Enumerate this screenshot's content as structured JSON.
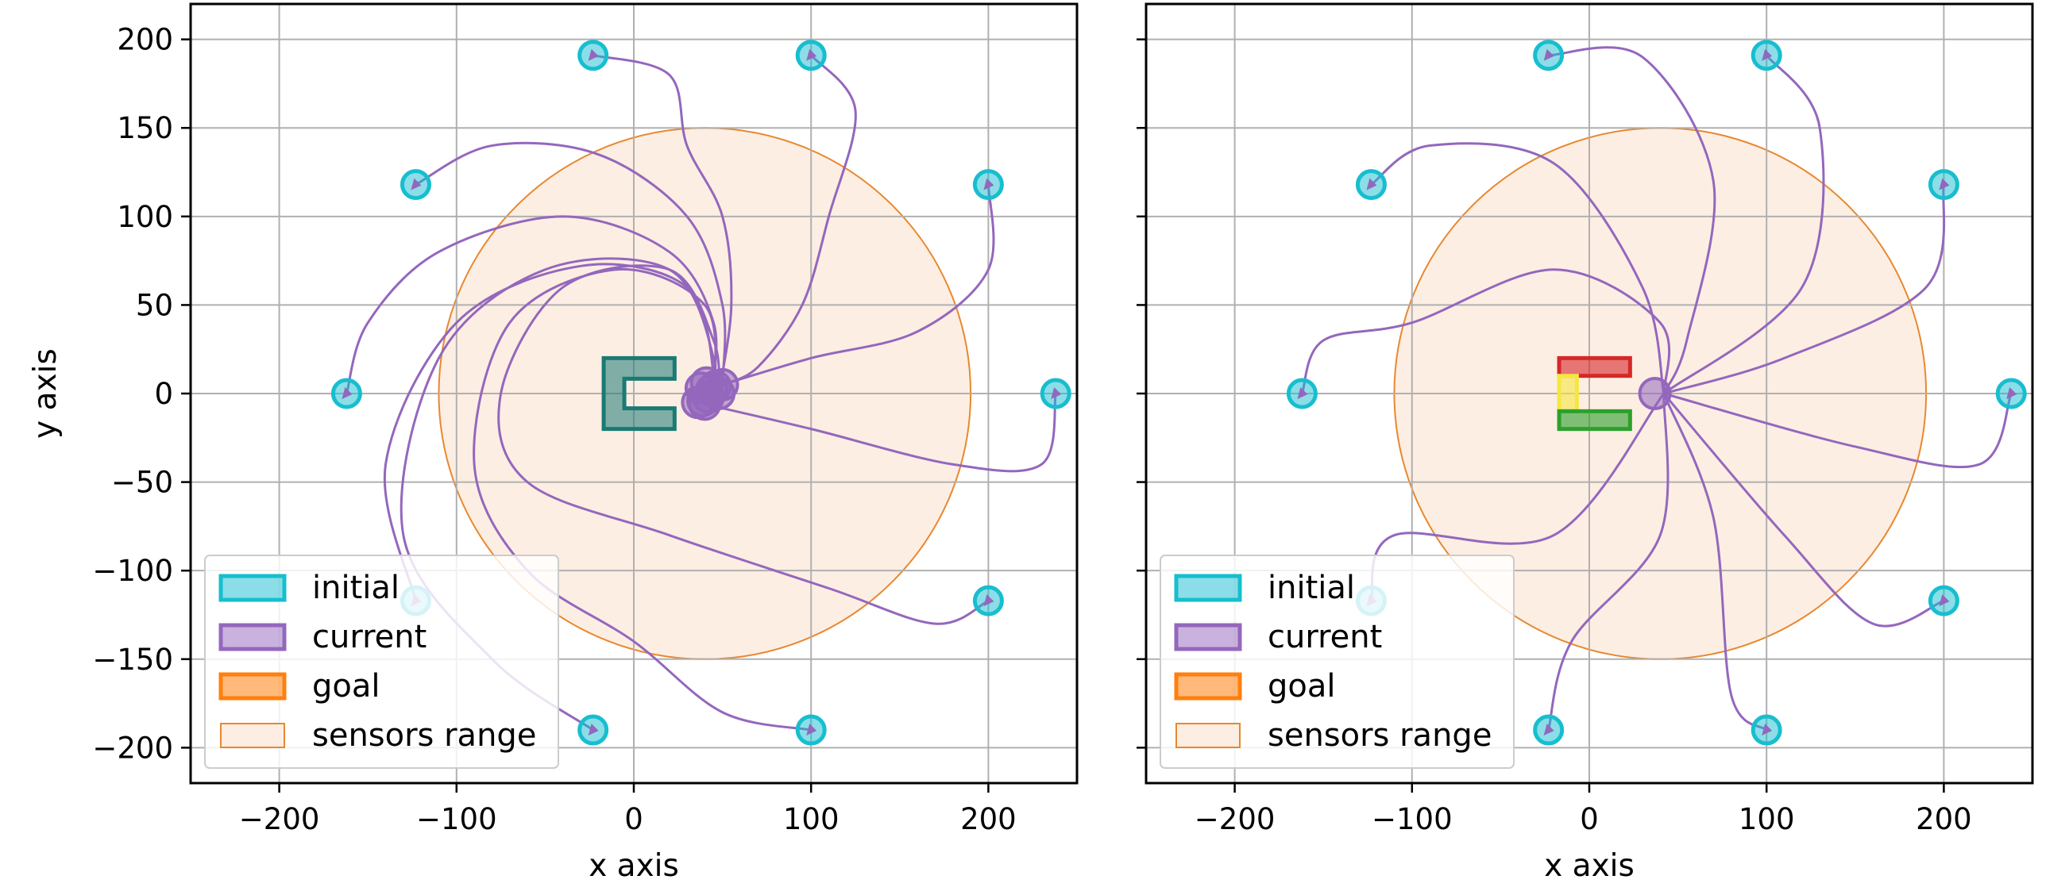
{
  "chart_data": [
    {
      "type": "scatter",
      "panel": "left",
      "xlabel": "x axis",
      "ylabel": "y axis",
      "xlim": [
        -250,
        250
      ],
      "ylim": [
        -220,
        220
      ],
      "xticks": [
        -200,
        -100,
        0,
        100,
        200
      ],
      "yticks": [
        -200,
        -150,
        -100,
        -50,
        0,
        50,
        100,
        150,
        200
      ],
      "xtick_labels": [
        "−200",
        "−100",
        "0",
        "100",
        "200"
      ],
      "ytick_labels": [
        "−200",
        "−150",
        "−100",
        "−50",
        "0",
        "50",
        "100",
        "150",
        "200"
      ],
      "grid": true,
      "legend_position": "lower-left",
      "legend": [
        "initial",
        "current",
        "goal",
        "sensors range"
      ],
      "sensors_range": {
        "center": [
          40,
          0
        ],
        "radius": 150
      },
      "goal_shape": {
        "type": "c-bracket",
        "x_range": [
          -17,
          23
        ],
        "y_range": [
          -20,
          20
        ],
        "color": "#1a7a74"
      },
      "initial_positions": [
        [
          -162,
          0
        ],
        [
          -123,
          118
        ],
        [
          -23,
          191
        ],
        [
          100,
          191
        ],
        [
          200,
          118
        ],
        [
          238,
          0
        ],
        [
          200,
          -117
        ],
        [
          100,
          -190
        ],
        [
          -23,
          -190
        ],
        [
          -123,
          -117
        ]
      ],
      "current_positions": [
        [
          40,
          -6
        ],
        [
          44,
          2
        ],
        [
          50,
          5
        ],
        [
          38,
          3
        ],
        [
          42,
          -2
        ],
        [
          48,
          0
        ],
        [
          36,
          -5
        ],
        [
          46,
          4
        ],
        [
          41,
          6
        ],
        [
          39,
          -4
        ]
      ],
      "trajectories": [
        [
          [
            -162,
            0
          ],
          [
            -150,
            40
          ],
          [
            -110,
            80
          ],
          [
            -40,
            100
          ],
          [
            20,
            80
          ],
          [
            45,
            40
          ],
          [
            44,
            2
          ]
        ],
        [
          [
            -123,
            118
          ],
          [
            -80,
            140
          ],
          [
            -20,
            135
          ],
          [
            30,
            100
          ],
          [
            50,
            50
          ],
          [
            50,
            5
          ]
        ],
        [
          [
            -23,
            191
          ],
          [
            20,
            180
          ],
          [
            30,
            140
          ],
          [
            50,
            100
          ],
          [
            55,
            50
          ],
          [
            48,
            0
          ]
        ],
        [
          [
            100,
            191
          ],
          [
            125,
            160
          ],
          [
            110,
            100
          ],
          [
            95,
            50
          ],
          [
            70,
            15
          ],
          [
            50,
            5
          ]
        ],
        [
          [
            200,
            118
          ],
          [
            200,
            70
          ],
          [
            160,
            35
          ],
          [
            100,
            20
          ],
          [
            50,
            5
          ]
        ],
        [
          [
            238,
            0
          ],
          [
            230,
            -40
          ],
          [
            180,
            -40
          ],
          [
            100,
            -20
          ],
          [
            40,
            -6
          ]
        ],
        [
          [
            200,
            -117
          ],
          [
            170,
            -130
          ],
          [
            110,
            -110
          ],
          [
            20,
            -80
          ],
          [
            -60,
            -50
          ],
          [
            -75,
            0
          ],
          [
            -40,
            60
          ],
          [
            20,
            70
          ],
          [
            45,
            30
          ],
          [
            48,
            0
          ]
        ],
        [
          [
            100,
            -190
          ],
          [
            50,
            -180
          ],
          [
            0,
            -140
          ],
          [
            -60,
            -100
          ],
          [
            -90,
            -40
          ],
          [
            -70,
            40
          ],
          [
            -10,
            70
          ],
          [
            40,
            50
          ],
          [
            46,
            4
          ]
        ],
        [
          [
            -23,
            -190
          ],
          [
            -80,
            -150
          ],
          [
            -130,
            -80
          ],
          [
            -110,
            20
          ],
          [
            -50,
            70
          ],
          [
            20,
            70
          ],
          [
            45,
            20
          ],
          [
            40,
            -6
          ]
        ],
        [
          [
            -123,
            -117
          ],
          [
            -140,
            -40
          ],
          [
            -100,
            40
          ],
          [
            -30,
            72
          ],
          [
            30,
            60
          ],
          [
            45,
            10
          ],
          [
            38,
            3
          ]
        ]
      ],
      "colors": {
        "initial": "#17becf",
        "current": "#9467bd",
        "goal": "#ff7f0e",
        "sensors_range": "#fdeee3",
        "sensors_edge": "#e8882f"
      }
    },
    {
      "type": "scatter",
      "panel": "right",
      "xlabel": "x axis",
      "ylabel": "",
      "xlim": [
        -250,
        250
      ],
      "ylim": [
        -220,
        220
      ],
      "xticks": [
        -200,
        -100,
        0,
        100,
        200
      ],
      "yticks": [
        -200,
        -150,
        -100,
        -50,
        0,
        50,
        100,
        150,
        200
      ],
      "xtick_labels": [
        "−200",
        "−100",
        "0",
        "100",
        "200"
      ],
      "grid": true,
      "legend_position": "lower-left",
      "legend": [
        "initial",
        "current",
        "goal",
        "sensors range"
      ],
      "sensors_range": {
        "center": [
          40,
          0
        ],
        "radius": 150
      },
      "goal_shape": {
        "type": "c-segments",
        "segments": [
          {
            "x_range": [
              -17,
              23
            ],
            "y_range": [
              10,
              20
            ],
            "color": "#d62728"
          },
          {
            "x_range": [
              -17,
              -7
            ],
            "y_range": [
              -10,
              10
            ],
            "color": "#f5e642"
          },
          {
            "x_range": [
              -17,
              23
            ],
            "y_range": [
              -20,
              -10
            ],
            "color": "#2ca02c"
          }
        ]
      },
      "initial_positions": [
        [
          -162,
          0
        ],
        [
          -123,
          118
        ],
        [
          -23,
          191
        ],
        [
          100,
          191
        ],
        [
          200,
          118
        ],
        [
          238,
          0
        ],
        [
          200,
          -117
        ],
        [
          100,
          -190
        ],
        [
          -23,
          -190
        ],
        [
          -123,
          -117
        ]
      ],
      "current_positions": [
        [
          37,
          0
        ]
      ],
      "trajectories": [
        [
          [
            -162,
            0
          ],
          [
            -150,
            30
          ],
          [
            -100,
            40
          ],
          [
            -20,
            70
          ],
          [
            40,
            40
          ],
          [
            42,
            0
          ]
        ],
        [
          [
            -123,
            118
          ],
          [
            -90,
            140
          ],
          [
            -20,
            130
          ],
          [
            30,
            60
          ],
          [
            42,
            0
          ]
        ],
        [
          [
            -23,
            191
          ],
          [
            30,
            190
          ],
          [
            70,
            120
          ],
          [
            55,
            30
          ],
          [
            42,
            0
          ]
        ],
        [
          [
            100,
            191
          ],
          [
            130,
            150
          ],
          [
            120,
            60
          ],
          [
            42,
            0
          ]
        ],
        [
          [
            200,
            118
          ],
          [
            190,
            60
          ],
          [
            110,
            20
          ],
          [
            42,
            0
          ]
        ],
        [
          [
            238,
            0
          ],
          [
            220,
            -40
          ],
          [
            150,
            -30
          ],
          [
            42,
            0
          ]
        ],
        [
          [
            200,
            -117
          ],
          [
            160,
            -130
          ],
          [
            110,
            -80
          ],
          [
            42,
            0
          ]
        ],
        [
          [
            100,
            -190
          ],
          [
            80,
            -170
          ],
          [
            70,
            -70
          ],
          [
            42,
            0
          ]
        ],
        [
          [
            -23,
            -190
          ],
          [
            -10,
            -140
          ],
          [
            40,
            -80
          ],
          [
            42,
            0
          ]
        ],
        [
          [
            -123,
            -117
          ],
          [
            -110,
            -80
          ],
          [
            -20,
            -80
          ],
          [
            42,
            0
          ]
        ]
      ],
      "colors": {
        "initial": "#17becf",
        "current": "#9467bd",
        "goal": "#ff7f0e",
        "sensors_range": "#fdeee3",
        "sensors_edge": "#e8882f"
      }
    }
  ]
}
